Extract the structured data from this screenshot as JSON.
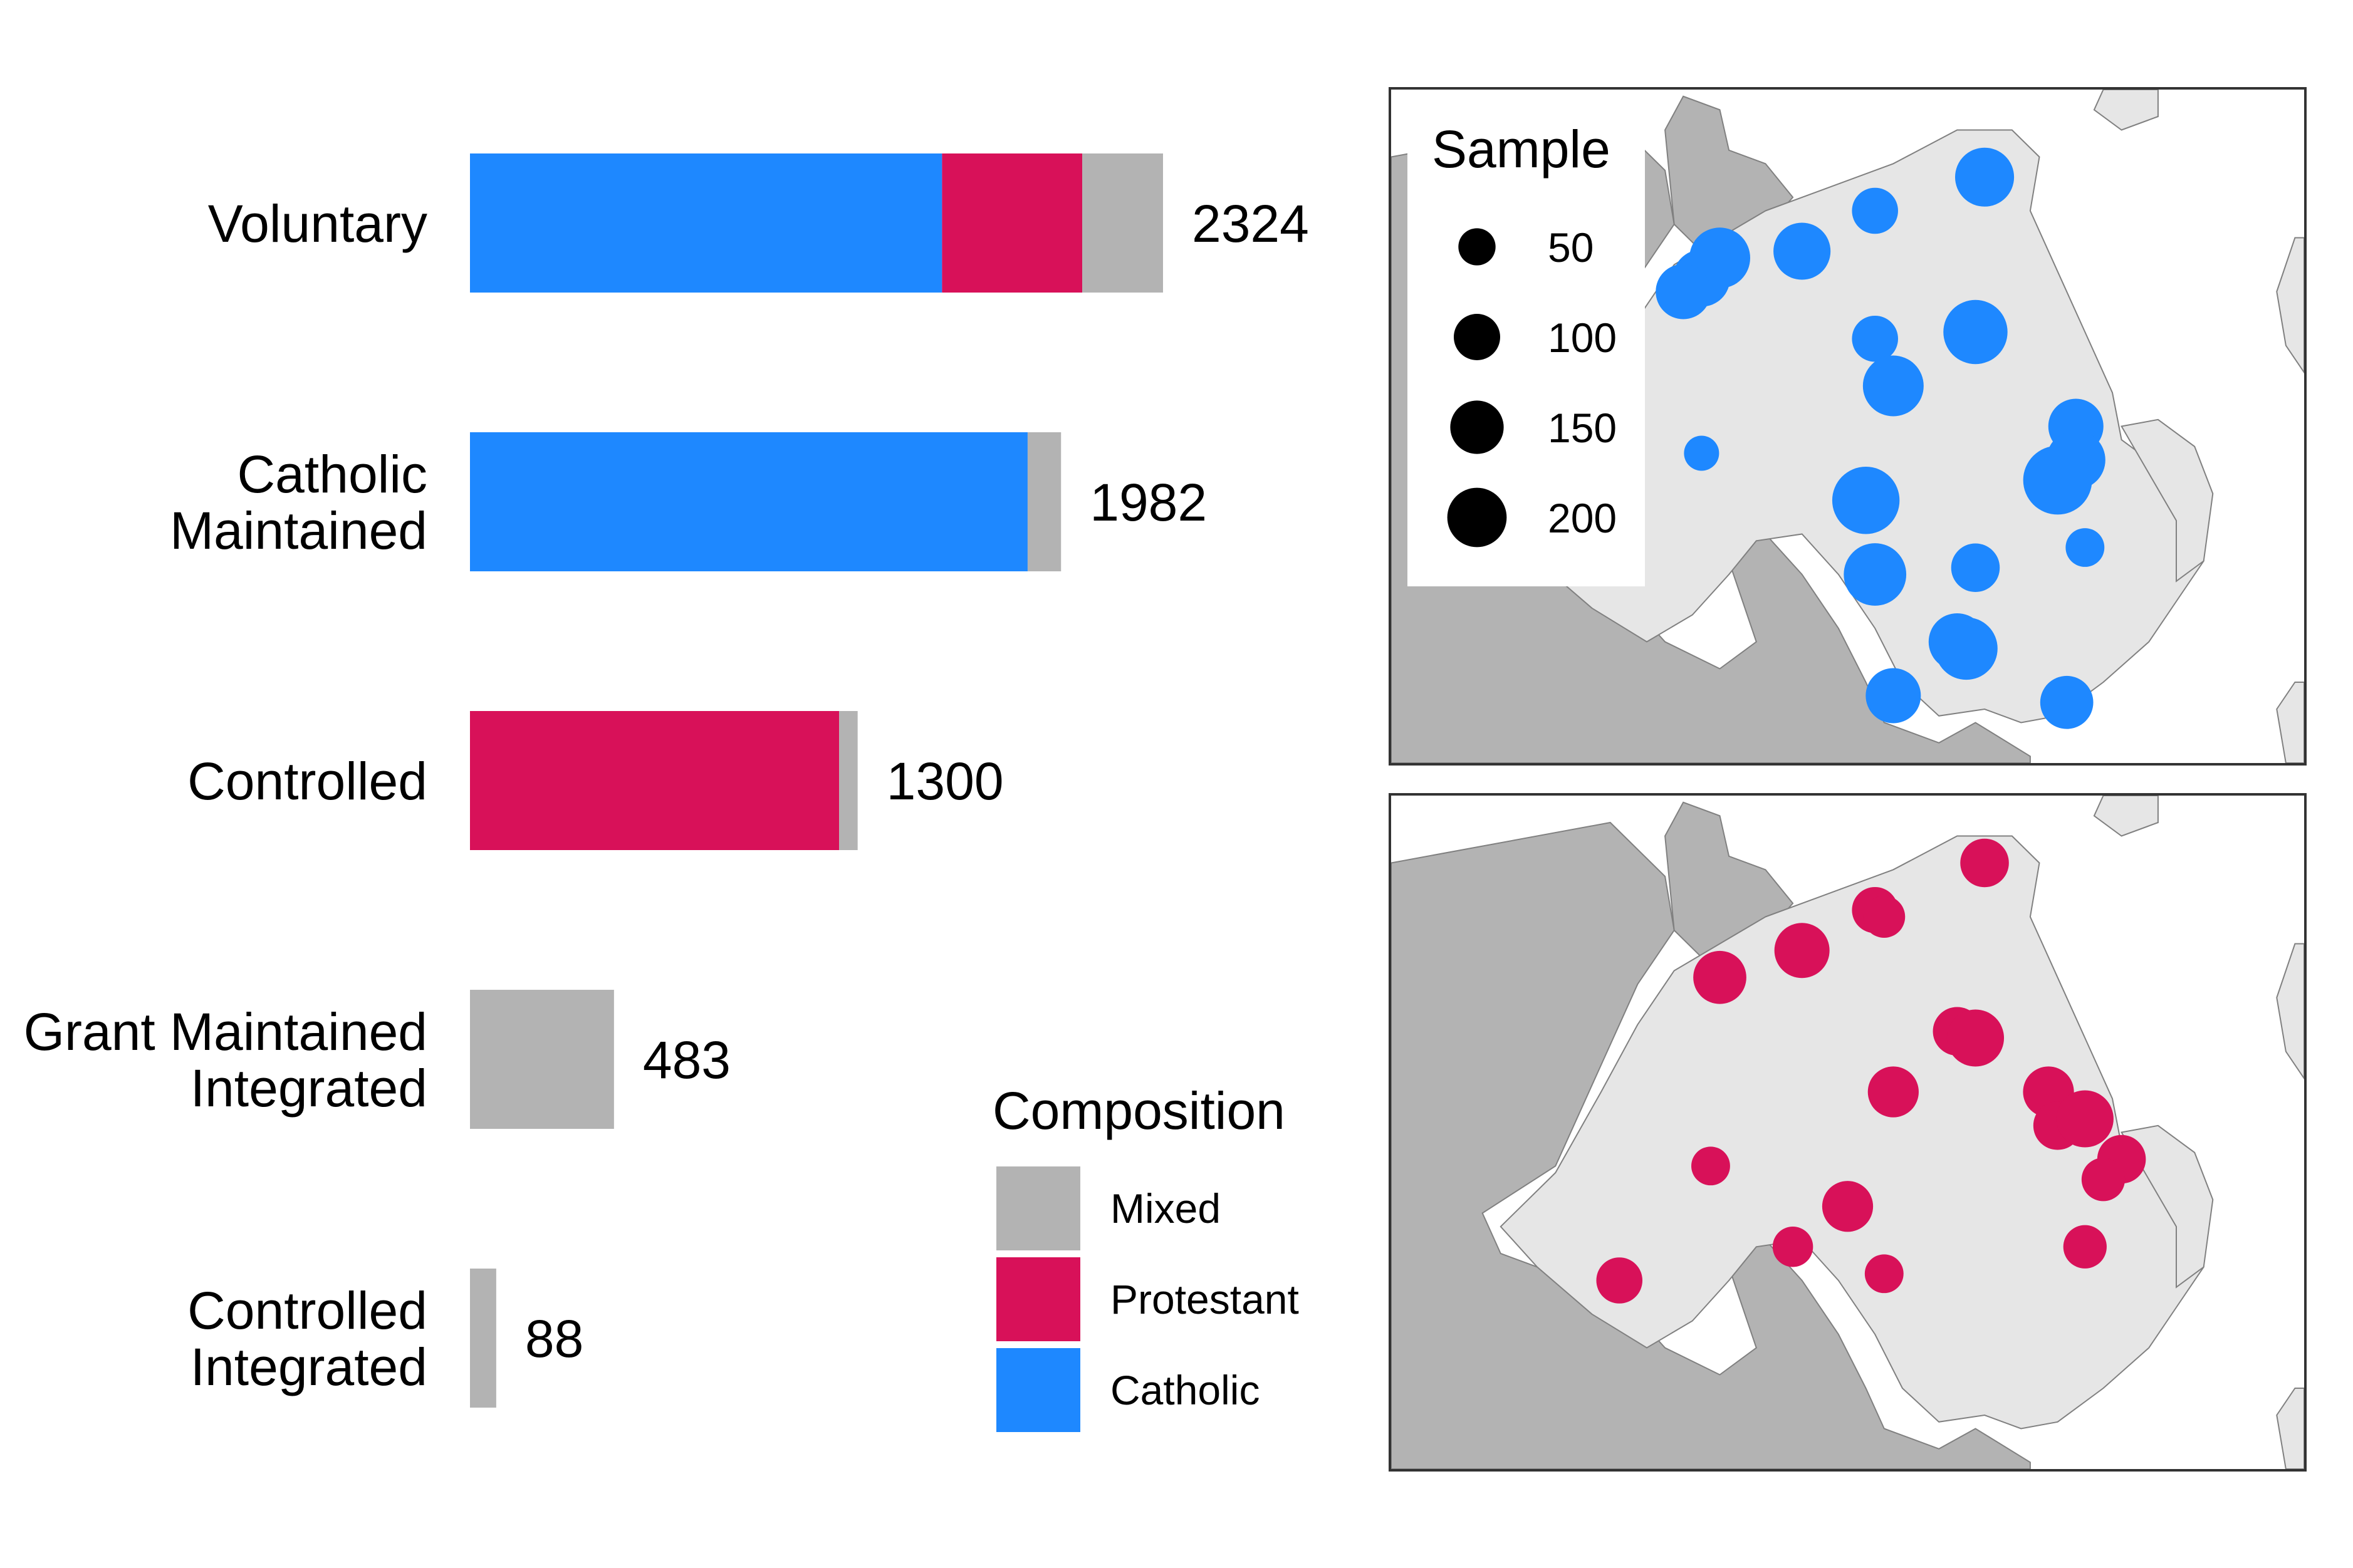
{
  "chart_data": [
    {
      "type": "bar",
      "orientation": "horizontal",
      "stacked": true,
      "categories": [
        [
          "Voluntary"
        ],
        [
          "Catholic",
          "Maintained"
        ],
        [
          "Controlled"
        ],
        [
          "Grant Maintained",
          "Integrated"
        ],
        [
          "Controlled",
          "Integrated"
        ]
      ],
      "totals": [
        "2324",
        "1982",
        "1300",
        "483",
        "88"
      ],
      "series": [
        {
          "name": "Catholic",
          "color": "#1E88FF",
          "values": [
            1583,
            1870,
            0,
            0,
            0
          ]
        },
        {
          "name": "Protestant",
          "color": "#D81159",
          "values": [
            470,
            0,
            1238,
            0,
            0
          ]
        },
        {
          "name": "Mixed",
          "color": "#B3B3B3",
          "values": [
            271,
            112,
            62,
            483,
            88
          ]
        }
      ],
      "xlim": [
        0,
        2324
      ],
      "grid": false,
      "legend": {
        "title": "Composition",
        "position": "bottom-right",
        "items": [
          {
            "label": "Mixed",
            "color": "#B3B3B3"
          },
          {
            "label": "Protestant",
            "color": "#D81159"
          },
          {
            "label": "Catholic",
            "color": "#1E88FF"
          }
        ]
      }
    },
    {
      "type": "scatter",
      "map": true,
      "color": "#1E88FF",
      "size_legend": {
        "title": "Sample",
        "position": "top-left",
        "values": [
          "50",
          "100",
          "150",
          "200"
        ]
      },
      "points": [
        {
          "x": 0.65,
          "y": 0.13,
          "size": 120
        },
        {
          "x": 0.53,
          "y": 0.18,
          "size": 60
        },
        {
          "x": 0.36,
          "y": 0.25,
          "size": 130
        },
        {
          "x": 0.45,
          "y": 0.24,
          "size": 110
        },
        {
          "x": 0.34,
          "y": 0.28,
          "size": 110
        },
        {
          "x": 0.32,
          "y": 0.3,
          "size": 100
        },
        {
          "x": 0.64,
          "y": 0.36,
          "size": 150
        },
        {
          "x": 0.53,
          "y": 0.37,
          "size": 60
        },
        {
          "x": 0.55,
          "y": 0.44,
          "size": 130
        },
        {
          "x": 0.34,
          "y": 0.54,
          "size": 25
        },
        {
          "x": 0.75,
          "y": 0.5,
          "size": 100
        },
        {
          "x": 0.75,
          "y": 0.55,
          "size": 120
        },
        {
          "x": 0.73,
          "y": 0.58,
          "size": 180
        },
        {
          "x": 0.52,
          "y": 0.61,
          "size": 170
        },
        {
          "x": 0.76,
          "y": 0.68,
          "size": 35
        },
        {
          "x": 0.53,
          "y": 0.72,
          "size": 140
        },
        {
          "x": 0.64,
          "y": 0.71,
          "size": 70
        },
        {
          "x": 0.62,
          "y": 0.82,
          "size": 110
        },
        {
          "x": 0.63,
          "y": 0.83,
          "size": 140
        },
        {
          "x": 0.55,
          "y": 0.9,
          "size": 100
        },
        {
          "x": 0.74,
          "y": 0.91,
          "size": 90
        }
      ]
    },
    {
      "type": "scatter",
      "map": true,
      "color": "#D81159",
      "points": [
        {
          "x": 0.65,
          "y": 0.1,
          "size": 70
        },
        {
          "x": 0.53,
          "y": 0.17,
          "size": 60
        },
        {
          "x": 0.54,
          "y": 0.18,
          "size": 45
        },
        {
          "x": 0.45,
          "y": 0.23,
          "size": 100
        },
        {
          "x": 0.36,
          "y": 0.27,
          "size": 90
        },
        {
          "x": 0.62,
          "y": 0.35,
          "size": 70
        },
        {
          "x": 0.64,
          "y": 0.36,
          "size": 110
        },
        {
          "x": 0.55,
          "y": 0.44,
          "size": 80
        },
        {
          "x": 0.72,
          "y": 0.44,
          "size": 80
        },
        {
          "x": 0.73,
          "y": 0.49,
          "size": 70
        },
        {
          "x": 0.76,
          "y": 0.48,
          "size": 110
        },
        {
          "x": 0.8,
          "y": 0.54,
          "size": 70
        },
        {
          "x": 0.78,
          "y": 0.57,
          "size": 50
        },
        {
          "x": 0.35,
          "y": 0.55,
          "size": 35
        },
        {
          "x": 0.5,
          "y": 0.61,
          "size": 80
        },
        {
          "x": 0.44,
          "y": 0.67,
          "size": 40
        },
        {
          "x": 0.76,
          "y": 0.67,
          "size": 50
        },
        {
          "x": 0.25,
          "y": 0.72,
          "size": 60
        },
        {
          "x": 0.54,
          "y": 0.71,
          "size": 35
        }
      ]
    }
  ]
}
